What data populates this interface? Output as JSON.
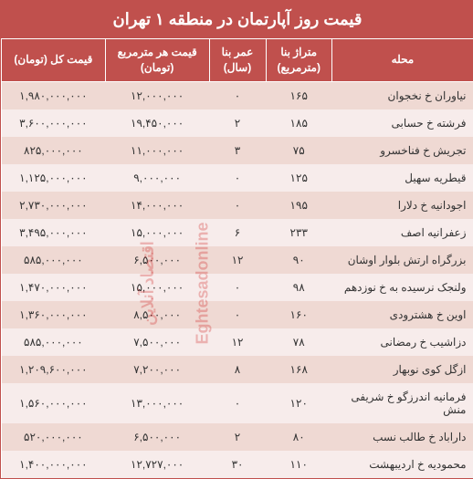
{
  "title": "قیمت روز آپارتمان در منطقه ۱ تهران",
  "watermark_fa": "اقتصاد آنلاین",
  "watermark_en": "Eghtesadonline",
  "columns": {
    "locality": "محله",
    "area": "متراژ بنا (مترمربع)",
    "age": "عمر بنا (سال)",
    "unit_price": "قیمت هر مترمربع (تومان)",
    "total_price": "قیمت کل (تومان)"
  },
  "rows": [
    {
      "locality": "نیاوران خ نخجوان",
      "area": "۱۶۵",
      "age": "۰",
      "unit_price": "۱۲,۰۰۰,۰۰۰",
      "total_price": "۱,۹۸۰,۰۰۰,۰۰۰"
    },
    {
      "locality": "فرشته خ حسابی",
      "area": "۱۸۵",
      "age": "۲",
      "unit_price": "۱۹,۴۵۰,۰۰۰",
      "total_price": "۳,۶۰۰,۰۰۰,۰۰۰"
    },
    {
      "locality": "تجریش خ فناخسرو",
      "area": "۷۵",
      "age": "۳",
      "unit_price": "۱۱,۰۰۰,۰۰۰",
      "total_price": "۸۲۵,۰۰۰,۰۰۰"
    },
    {
      "locality": "قیطریه سهیل",
      "area": "۱۲۵",
      "age": "۰",
      "unit_price": "۹,۰۰۰,۰۰۰",
      "total_price": "۱,۱۲۵,۰۰۰,۰۰۰"
    },
    {
      "locality": "اجودانیه خ دلارا",
      "area": "۱۹۵",
      "age": "۰",
      "unit_price": "۱۴,۰۰۰,۰۰۰",
      "total_price": "۲,۷۳۰,۰۰۰,۰۰۰"
    },
    {
      "locality": "زعفرانیه اصف",
      "area": "۲۳۳",
      "age": "۶",
      "unit_price": "۱۵,۰۰۰,۰۰۰",
      "total_price": "۳,۴۹۵,۰۰۰,۰۰۰"
    },
    {
      "locality": "بزرگراه ارتش بلوار اوشان",
      "area": "۹۰",
      "age": "۱۲",
      "unit_price": "۶,۵۰۰,۰۰۰",
      "total_price": "۵۸۵,۰۰۰,۰۰۰"
    },
    {
      "locality": "ولنجک نرسیده به خ نوزدهم",
      "area": "۹۸",
      "age": "۰",
      "unit_price": "۱۵,۰۰۰,۰۰۰",
      "total_price": "۱,۴۷۰,۰۰۰,۰۰۰"
    },
    {
      "locality": "اوین خ هشترودی",
      "area": "۱۶۰",
      "age": "۰",
      "unit_price": "۸,۵۰۰,۰۰۰",
      "total_price": "۱,۳۶۰,۰۰۰,۰۰۰"
    },
    {
      "locality": "دزاشیب خ رمضانی",
      "area": "۷۸",
      "age": "۱۲",
      "unit_price": "۷,۵۰۰,۰۰۰",
      "total_price": "۵۸۵,۰۰۰,۰۰۰"
    },
    {
      "locality": "ازگل کوی نوبهار",
      "area": "۱۶۸",
      "age": "۸",
      "unit_price": "۷,۲۰۰,۰۰۰",
      "total_price": "۱,۲۰۹,۶۰۰,۰۰۰"
    },
    {
      "locality": "فرمانیه اندرزگو خ شریفی منش",
      "area": "۱۲۰",
      "age": "۰",
      "unit_price": "۱۳,۰۰۰,۰۰۰",
      "total_price": "۱,۵۶۰,۰۰۰,۰۰۰"
    },
    {
      "locality": "داراباد خ طالب نسب",
      "area": "۸۰",
      "age": "۲",
      "unit_price": "۶,۵۰۰,۰۰۰",
      "total_price": "۵۲۰,۰۰۰,۰۰۰"
    },
    {
      "locality": "محمودیه خ اردیبهشت",
      "area": "۱۱۰",
      "age": "۳۰",
      "unit_price": "۱۲,۷۲۷,۰۰۰",
      "total_price": "۱,۴۰۰,۰۰۰,۰۰۰"
    }
  ],
  "styling": {
    "header_bg": "#c0504d",
    "header_color": "#ffffff",
    "row_odd_bg": "#efd9d3",
    "row_even_bg": "#f7eceb",
    "font_family": "Tahoma",
    "title_fontsize": 18,
    "th_fontsize": 12,
    "td_fontsize": 12
  }
}
